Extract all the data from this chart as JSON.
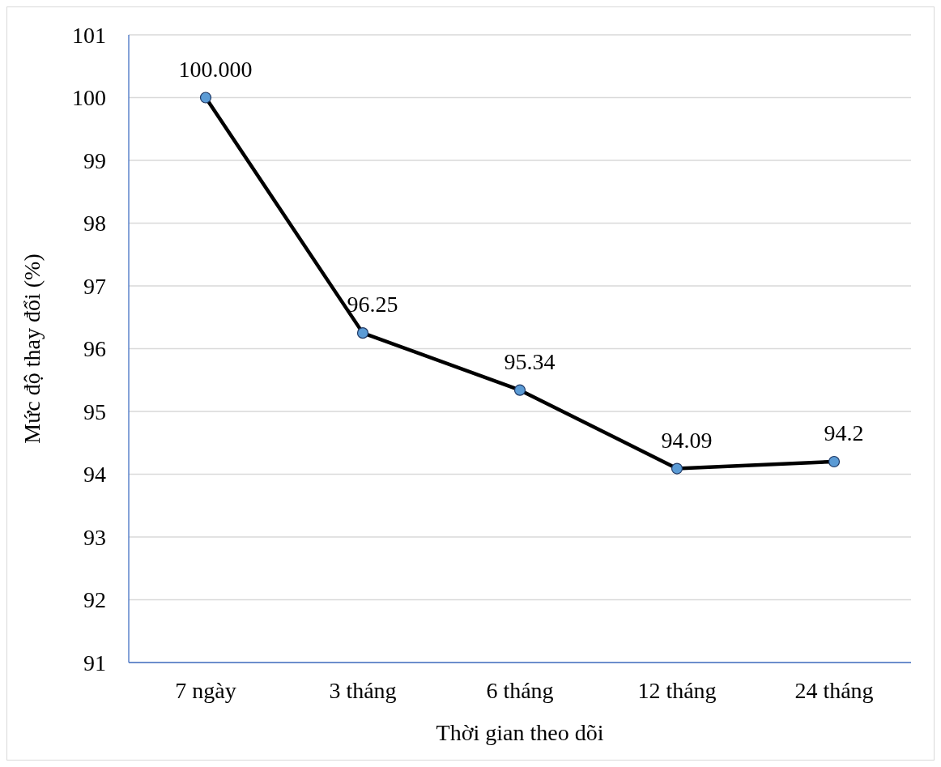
{
  "chart_data": {
    "type": "line",
    "xlabel": "Thời gian theo dõi",
    "ylabel": "Mức độ thay đổi (%)",
    "categories": [
      "7 ngày",
      "3 tháng",
      "6 tháng",
      "12 tháng",
      "24 tháng"
    ],
    "series": [
      {
        "color": "#000000",
        "colors": [
          "#5b9bd5",
          "#5b9bd5",
          "#5b9bd5",
          "#5b9bd5",
          "#5b9bd5"
        ],
        "values": [
          100,
          96.25,
          95.34,
          94.09,
          94.2
        ],
        "value_labels": [
          "100.000",
          "96.25",
          "95.34",
          "94.09",
          "94.2"
        ]
      }
    ],
    "ylim": [
      91,
      101
    ],
    "yticks": [
      91,
      92,
      93,
      94,
      95,
      96,
      97,
      98,
      99,
      100,
      101
    ],
    "grid": "y",
    "legend": false,
    "marker": "circle",
    "line_style": "solid"
  }
}
